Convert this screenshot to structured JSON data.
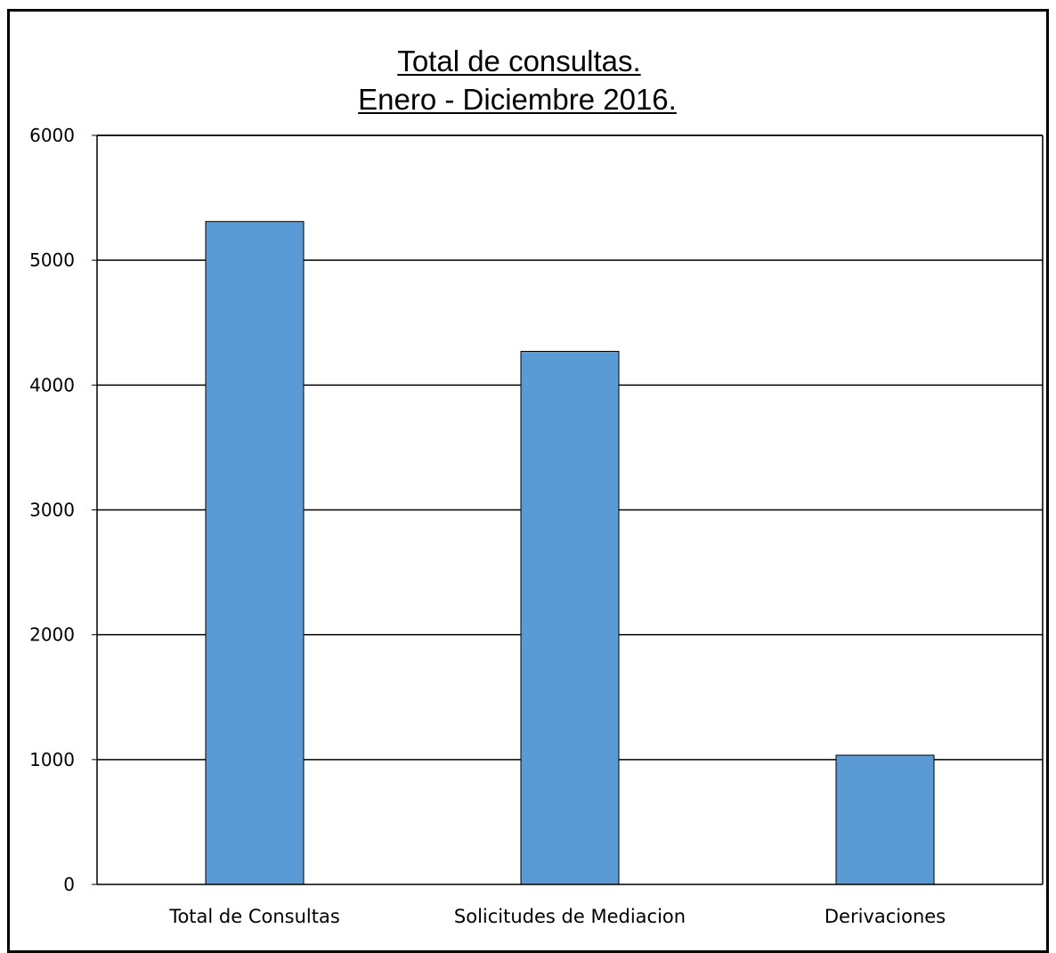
{
  "chart_data": {
    "type": "bar",
    "title": "Total de consultas.",
    "subtitle": "Enero - Diciembre 2016.",
    "categories": [
      "Total de Consultas",
      "Solicitudes de Mediacion",
      "Derivaciones"
    ],
    "values": [
      5310,
      4270,
      1035
    ],
    "ylim": [
      0,
      6000
    ],
    "yticks": [
      0,
      1000,
      2000,
      3000,
      4000,
      5000,
      6000
    ],
    "grid": true,
    "legend": "none",
    "bar_color": "#5b9bd5",
    "bar_edge_color": "#000000"
  }
}
